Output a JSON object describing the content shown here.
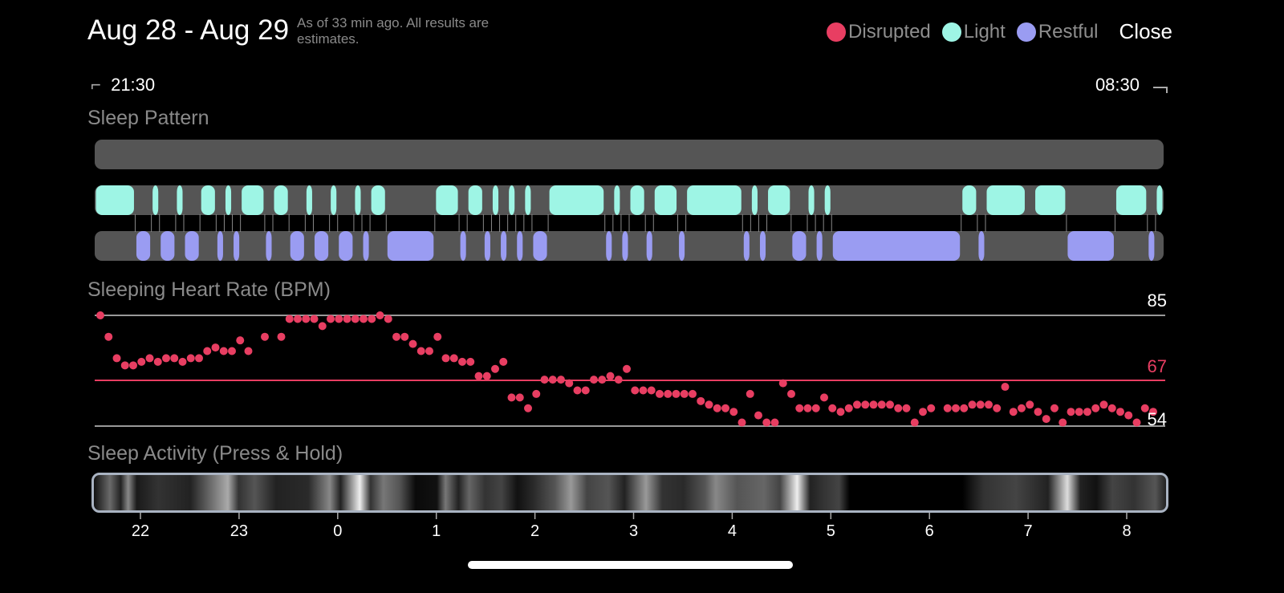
{
  "header": {
    "title": "Aug 28 - Aug 29",
    "subtitle": "As of 33 min ago. All results are estimates.",
    "close_label": "Close"
  },
  "legend": [
    {
      "label": "Disrupted",
      "color": "#e83e62"
    },
    {
      "label": "Light",
      "color": "#9ef5e5"
    },
    {
      "label": "Restful",
      "color": "#9a9cf2"
    }
  ],
  "range": {
    "start": "21:30",
    "end": "08:30"
  },
  "sections": {
    "pattern": "Sleep Pattern",
    "heart": "Sleeping Heart Rate (BPM)",
    "activity": "Sleep Activity (Press & Hold)"
  },
  "chart_data": {
    "sleep_pattern": {
      "unit": "minutes since 21:30",
      "total_minutes": 660,
      "disrupted": [],
      "light": [
        [
          0,
          25
        ],
        [
          35,
          40
        ],
        [
          50,
          55
        ],
        [
          65,
          75
        ],
        [
          80,
          85
        ],
        [
          90,
          105
        ],
        [
          110,
          120
        ],
        [
          130,
          135
        ],
        [
          145,
          150
        ],
        [
          160,
          165
        ],
        [
          170,
          180
        ],
        [
          210,
          225
        ],
        [
          230,
          240
        ],
        [
          245,
          250
        ],
        [
          255,
          260
        ],
        [
          265,
          270
        ],
        [
          280,
          315
        ],
        [
          320,
          325
        ],
        [
          330,
          340
        ],
        [
          345,
          360
        ],
        [
          365,
          400
        ],
        [
          405,
          410
        ],
        [
          415,
          430
        ],
        [
          440,
          445
        ],
        [
          450,
          455
        ],
        [
          535,
          545
        ],
        [
          550,
          575
        ],
        [
          580,
          600
        ],
        [
          630,
          650
        ],
        [
          655,
          660
        ]
      ],
      "restful": [
        [
          25,
          35
        ],
        [
          40,
          50
        ],
        [
          55,
          65
        ],
        [
          75,
          80
        ],
        [
          85,
          90
        ],
        [
          105,
          110
        ],
        [
          120,
          130
        ],
        [
          135,
          145
        ],
        [
          150,
          160
        ],
        [
          165,
          170
        ],
        [
          180,
          210
        ],
        [
          225,
          230
        ],
        [
          240,
          245
        ],
        [
          250,
          255
        ],
        [
          260,
          265
        ],
        [
          270,
          280
        ],
        [
          315,
          320
        ],
        [
          325,
          330
        ],
        [
          340,
          345
        ],
        [
          360,
          365
        ],
        [
          400,
          405
        ],
        [
          410,
          415
        ],
        [
          430,
          440
        ],
        [
          445,
          450
        ],
        [
          455,
          535
        ],
        [
          545,
          550
        ],
        [
          600,
          630
        ],
        [
          650,
          655
        ]
      ]
    },
    "heart_rate": {
      "type": "scatter",
      "interval_minutes": 5,
      "start_offset_minutes": 3,
      "y_labels": {
        "max": "85",
        "avg": "67",
        "min": "54"
      },
      "ylim": [
        54,
        85
      ],
      "avg": 67,
      "values": [
        85,
        79,
        73,
        71,
        71,
        72,
        73,
        72,
        73,
        73,
        72,
        73,
        73,
        75,
        76,
        75,
        75,
        78,
        75,
        null,
        79,
        null,
        79,
        84,
        84,
        84,
        84,
        82,
        84,
        84,
        84,
        84,
        84,
        84,
        85,
        84,
        79,
        79,
        77,
        75,
        75,
        79,
        73,
        73,
        72,
        72,
        68,
        68,
        70,
        72,
        62,
        62,
        59,
        63,
        67,
        67,
        67,
        66,
        64,
        64,
        67,
        67,
        68,
        67,
        70,
        64,
        64,
        64,
        63,
        63,
        63,
        63,
        63,
        61,
        60,
        59,
        59,
        58,
        55,
        63,
        57,
        55,
        55,
        66,
        63,
        59,
        59,
        59,
        62,
        59,
        58,
        59,
        60,
        60,
        60,
        60,
        60,
        59,
        59,
        55,
        58,
        59,
        null,
        59,
        59,
        59,
        60,
        60,
        60,
        59,
        65,
        58,
        59,
        60,
        58,
        56,
        59,
        55,
        58,
        58,
        58,
        59,
        60,
        59,
        58,
        57,
        55,
        59,
        58
      ]
    },
    "activity_axis": {
      "ticks": [
        "22",
        "23",
        "0",
        "1",
        "2",
        "3",
        "4",
        "5",
        "6",
        "7",
        "8"
      ]
    }
  }
}
